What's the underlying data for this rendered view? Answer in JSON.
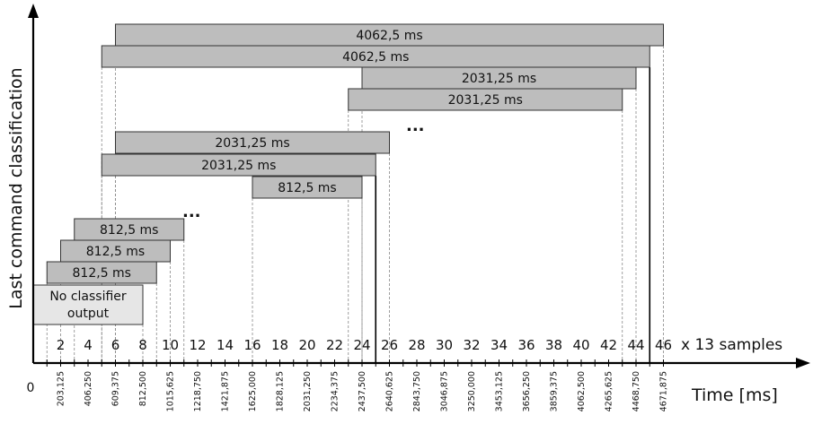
{
  "chart_data": {
    "type": "timeline",
    "ylabel": "Last command classification",
    "xlabel": "Time [ms]",
    "sample_unit_label": "x 13 samples",
    "origin_label": "0",
    "sample_ticks": [
      "2",
      "4",
      "6",
      "8",
      "10",
      "12",
      "14",
      "16",
      "18",
      "20",
      "22",
      "24",
      "26",
      "28",
      "30",
      "32",
      "34",
      "36",
      "38",
      "40",
      "42",
      "44",
      "46"
    ],
    "time_ticks": [
      "203,125",
      "406,250",
      "609,375",
      "812,500",
      "1015,625",
      "1218,750",
      "1421,875",
      "1625,000",
      "1828,125",
      "2031,250",
      "2234,375",
      "2437,500",
      "2640,625",
      "2843,750",
      "3046,875",
      "3250,000",
      "3453,125",
      "3656,250",
      "3859,375",
      "4062,500",
      "4265,625",
      "4468,750",
      "4671,875"
    ],
    "ellipsis": [
      "...",
      "..."
    ],
    "bars": [
      {
        "label": "No classifier output",
        "label_lines": [
          "No classifier",
          "output"
        ],
        "start": 0,
        "end": 8,
        "style": "light"
      },
      {
        "label": "812,5 ms",
        "start": 1,
        "end": 9,
        "style": "gray"
      },
      {
        "label": "812,5 ms",
        "start": 2,
        "end": 10,
        "style": "gray"
      },
      {
        "label": "812,5 ms",
        "start": 3,
        "end": 11,
        "style": "gray"
      },
      {
        "label": "812,5 ms",
        "start": 16,
        "end": 24,
        "style": "gray"
      },
      {
        "label": "2031,25 ms",
        "start": 5,
        "end": 25,
        "style": "gray"
      },
      {
        "label": "2031,25 ms",
        "start": 6,
        "end": 26,
        "style": "gray"
      },
      {
        "label": "2031,25 ms",
        "start": 23,
        "end": 43,
        "style": "gray"
      },
      {
        "label": "2031,25 ms",
        "start": 24,
        "end": 44,
        "style": "gray"
      },
      {
        "label": "4062,5 ms",
        "start": 5,
        "end": 45,
        "style": "gray"
      },
      {
        "label": "4062,5 ms",
        "start": 6,
        "end": 46,
        "style": "gray"
      }
    ],
    "colors": {
      "bar": "#bdbdbd",
      "bar_light": "#e6e6e6",
      "stroke": "#333333"
    }
  }
}
